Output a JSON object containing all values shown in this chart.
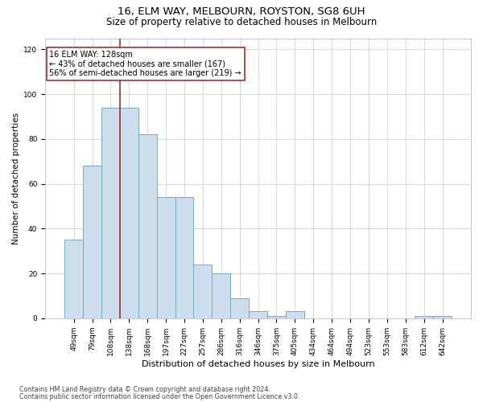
{
  "title1": "16, ELM WAY, MELBOURN, ROYSTON, SG8 6UH",
  "title2": "Size of property relative to detached houses in Melbourn",
  "xlabel": "Distribution of detached houses by size in Melbourn",
  "ylabel": "Number of detached properties",
  "categories": [
    "49sqm",
    "79sqm",
    "108sqm",
    "138sqm",
    "168sqm",
    "197sqm",
    "227sqm",
    "257sqm",
    "286sqm",
    "316sqm",
    "346sqm",
    "375sqm",
    "405sqm",
    "434sqm",
    "464sqm",
    "494sqm",
    "523sqm",
    "553sqm",
    "583sqm",
    "612sqm",
    "642sqm"
  ],
  "values": [
    35,
    68,
    94,
    94,
    82,
    54,
    54,
    24,
    20,
    9,
    3,
    1,
    3,
    0,
    0,
    0,
    0,
    0,
    0,
    1,
    1
  ],
  "bar_color": "#ccdded",
  "bar_edge_color": "#7aaabb",
  "vline_color": "#993333",
  "annotation_text": "16 ELM WAY: 128sqm\n← 43% of detached houses are smaller (167)\n56% of semi-detached houses are larger (219) →",
  "annotation_box_color": "#ffffff",
  "annotation_box_edge": "#993333",
  "ylim": [
    0,
    125
  ],
  "yticks": [
    0,
    20,
    40,
    60,
    80,
    100,
    120
  ],
  "footer1": "Contains HM Land Registry data © Crown copyright and database right 2024.",
  "footer2": "Contains public sector information licensed under the Open Government Licence v3.0.",
  "bg_color": "#ffffff",
  "grid_color": "#d0d0e0",
  "title1_fontsize": 9.5,
  "title2_fontsize": 8.5,
  "xlabel_fontsize": 8,
  "ylabel_fontsize": 7.5,
  "tick_fontsize": 6.5,
  "annot_fontsize": 7,
  "footer_fontsize": 5.8
}
